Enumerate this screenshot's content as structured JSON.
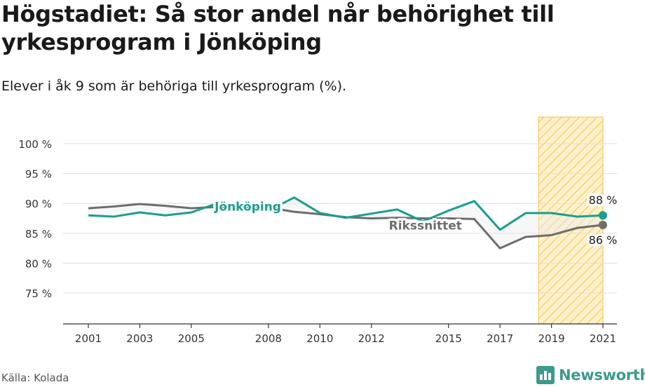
{
  "header": {
    "title": "Högstadiet: Så stor andel når behörighet till yrkesprogram i Jönköping",
    "subtitle": "Elever i åk 9 som är behöriga till yrkesprogram (%)."
  },
  "footer": {
    "source": "Källa: Kolada",
    "brand": "Newsworthy"
  },
  "colors": {
    "jonkoping": "#1a9e8f",
    "riksnittet": "#6d6d6d",
    "highlight": "#f5c85a",
    "grid": "#dddddd"
  },
  "chart_data": {
    "type": "line",
    "x_ticks": [
      2001,
      2003,
      2005,
      2008,
      2010,
      2012,
      2015,
      2017,
      2019,
      2021
    ],
    "y_ticks": [
      75,
      80,
      85,
      90,
      95,
      100
    ],
    "y_tick_labels": [
      "75 %",
      "80 %",
      "85 %",
      "90 %",
      "95 %",
      "100 %"
    ],
    "ylim": [
      70,
      100
    ],
    "xlim": [
      2000,
      2022
    ],
    "highlight_range": [
      2018.5,
      2021
    ],
    "series": [
      {
        "name": "Jönköping",
        "color": "#1a9e8f",
        "end_label": "88 %",
        "points": [
          [
            2001,
            88.0
          ],
          [
            2002,
            87.8
          ],
          [
            2003,
            88.5
          ],
          [
            2004,
            88.0
          ],
          [
            2005,
            88.5
          ],
          [
            2006,
            90.0
          ],
          [
            2007,
            89.5
          ],
          [
            2008,
            88.8
          ],
          [
            2009,
            91.0
          ],
          [
            2010,
            88.4
          ],
          [
            2011,
            87.6
          ],
          [
            2012,
            88.3
          ],
          [
            2013,
            89.0
          ],
          [
            2014,
            87.0
          ],
          [
            2015,
            88.8
          ],
          [
            2016,
            90.4
          ],
          [
            2017,
            85.6
          ],
          [
            2018,
            88.4
          ],
          [
            2019,
            88.4
          ],
          [
            2020,
            87.8
          ],
          [
            2021,
            88.0
          ]
        ]
      },
      {
        "name": "Rikssnittet",
        "color": "#6d6d6d",
        "end_label": "86 %",
        "points": [
          [
            2001,
            89.2
          ],
          [
            2002,
            89.5
          ],
          [
            2003,
            89.9
          ],
          [
            2004,
            89.6
          ],
          [
            2005,
            89.2
          ],
          [
            2006,
            89.4
          ],
          [
            2007,
            89.4
          ],
          [
            2008,
            89.3
          ],
          [
            2009,
            88.6
          ],
          [
            2010,
            88.2
          ],
          [
            2011,
            87.7
          ],
          [
            2012,
            87.5
          ],
          [
            2013,
            87.6
          ],
          [
            2014,
            87.5
          ],
          [
            2015,
            87.5
          ],
          [
            2016,
            87.4
          ],
          [
            2017,
            82.5
          ],
          [
            2018,
            84.4
          ],
          [
            2019,
            84.7
          ],
          [
            2020,
            85.9
          ],
          [
            2021,
            86.4
          ]
        ]
      }
    ]
  }
}
